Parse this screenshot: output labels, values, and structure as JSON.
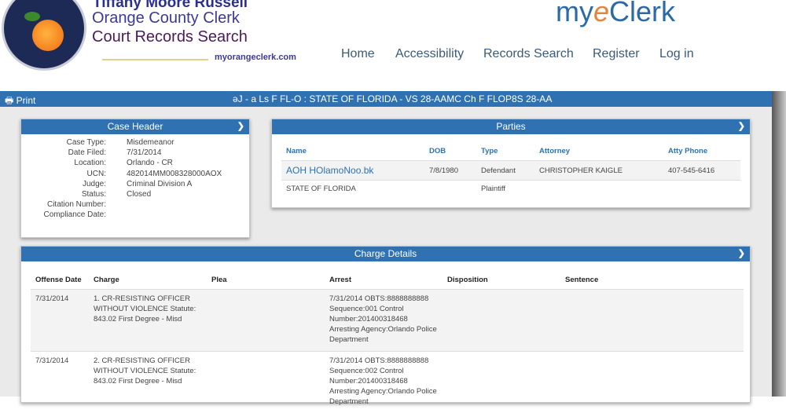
{
  "header": {
    "brand_name": "Tiffany Moore Russell",
    "brand_line2": "Orange County Clerk",
    "brand_line3": "Court Records Search",
    "brand_url": "myorangeclerk.com",
    "logo_text": "Clerk of Court Orange County Florida",
    "myeclerk": {
      "pre": "my",
      "e": "e",
      "post": "Clerk"
    },
    "nav": [
      "Home",
      "Accessibility",
      "Records Search",
      "Register",
      "Log in"
    ]
  },
  "toolbar": {
    "print": "Print",
    "case_title": "ǝJ  -  a Ls   F FL-O : STATE OF FLORIDA - VS 28-AAMC Ch F FLOP8S 28-AA"
  },
  "case_header": {
    "title": "Case Header",
    "fields": [
      {
        "k": "Case Type:",
        "v": "Misdemeanor"
      },
      {
        "k": "Date Filed:",
        "v": "7/31/2014"
      },
      {
        "k": "Location:",
        "v": "Orlando - CR"
      },
      {
        "k": "UCN:",
        "v": "482014MM008328000AOX"
      },
      {
        "k": "Judge:",
        "v": "Criminal Division A"
      },
      {
        "k": "Status:",
        "v": "Closed"
      },
      {
        "k": "Citation Number:",
        "v": ""
      },
      {
        "k": "Compliance Date:",
        "v": ""
      }
    ]
  },
  "parties": {
    "title": "Parties",
    "columns": [
      "Name",
      "DOB",
      "Type",
      "Attorney",
      "Atty Phone"
    ],
    "rows": [
      [
        "AOH HOlamoNoo.bk",
        "7/8/1980",
        "Defendant",
        "CHRISTOPHER KAIGLE",
        "407-545-6416"
      ],
      [
        "STATE OF FLORIDA",
        "",
        "Plaintiff",
        "",
        ""
      ]
    ]
  },
  "charges": {
    "title": "Charge Details",
    "columns": [
      "Offense Date",
      "Charge",
      "Plea",
      "Arrest",
      "Disposition",
      "Sentence"
    ],
    "rows": [
      [
        "7/31/2014",
        "1. CR-RESISTING OFFICER WITHOUT VIOLENCE Statute: 843.02 First Degree - Misd",
        "",
        "7/31/2014 OBTS:8888888888 Sequence:001 Control Number:201400318468 Arresting Agency:Orlando Police Department",
        "",
        ""
      ],
      [
        "7/31/2014",
        "2. CR-RESISTING OFFICER WITHOUT VIOLENCE Statute: 843.02 First Degree - Misd",
        "",
        "7/31/2014 OBTS:8888888888 Sequence:002 Control Number:201400318468 Arresting Agency:Orlando Police Department",
        "",
        ""
      ]
    ]
  },
  "colors": {
    "accent": "#2f71b1",
    "brand": "#2b2f8f"
  }
}
